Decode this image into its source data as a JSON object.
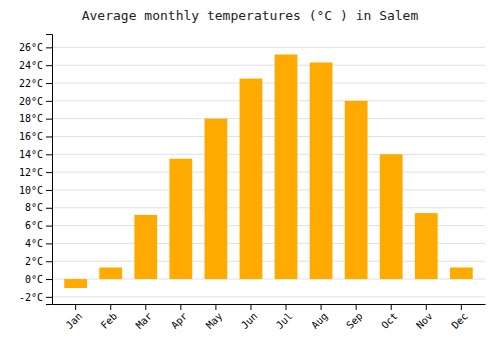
{
  "chart_data": {
    "type": "bar",
    "title": "Average monthly temperatures (°C ) in Salem",
    "categories": [
      "Jan",
      "Feb",
      "Mar",
      "Apr",
      "May",
      "Jun",
      "Jul",
      "Aug",
      "Sep",
      "Oct",
      "Nov",
      "Dec"
    ],
    "values": [
      -1.0,
      1.3,
      7.2,
      13.5,
      18.0,
      22.5,
      25.2,
      24.3,
      20.0,
      14.0,
      7.4,
      1.3
    ],
    "color": "#FFAA00",
    "ylim": [
      -2.8,
      27.5
    ],
    "yticks": [
      {
        "value": -2,
        "label": "-2°C"
      },
      {
        "value": 0,
        "label": "0°C"
      },
      {
        "value": 2,
        "label": "2°C"
      },
      {
        "value": 4,
        "label": "4°C"
      },
      {
        "value": 6,
        "label": "6°C"
      },
      {
        "value": 8,
        "label": "8°C"
      },
      {
        "value": 10,
        "label": "10°C"
      },
      {
        "value": 12,
        "label": "12°C"
      },
      {
        "value": 14,
        "label": "14°C"
      },
      {
        "value": 16,
        "label": "16°C"
      },
      {
        "value": 18,
        "label": "18°C"
      },
      {
        "value": 20,
        "label": "20°C"
      },
      {
        "value": 22,
        "label": "22°C"
      },
      {
        "value": 24,
        "label": "24°C"
      },
      {
        "value": 26,
        "label": "26°C"
      }
    ],
    "grid": true
  }
}
